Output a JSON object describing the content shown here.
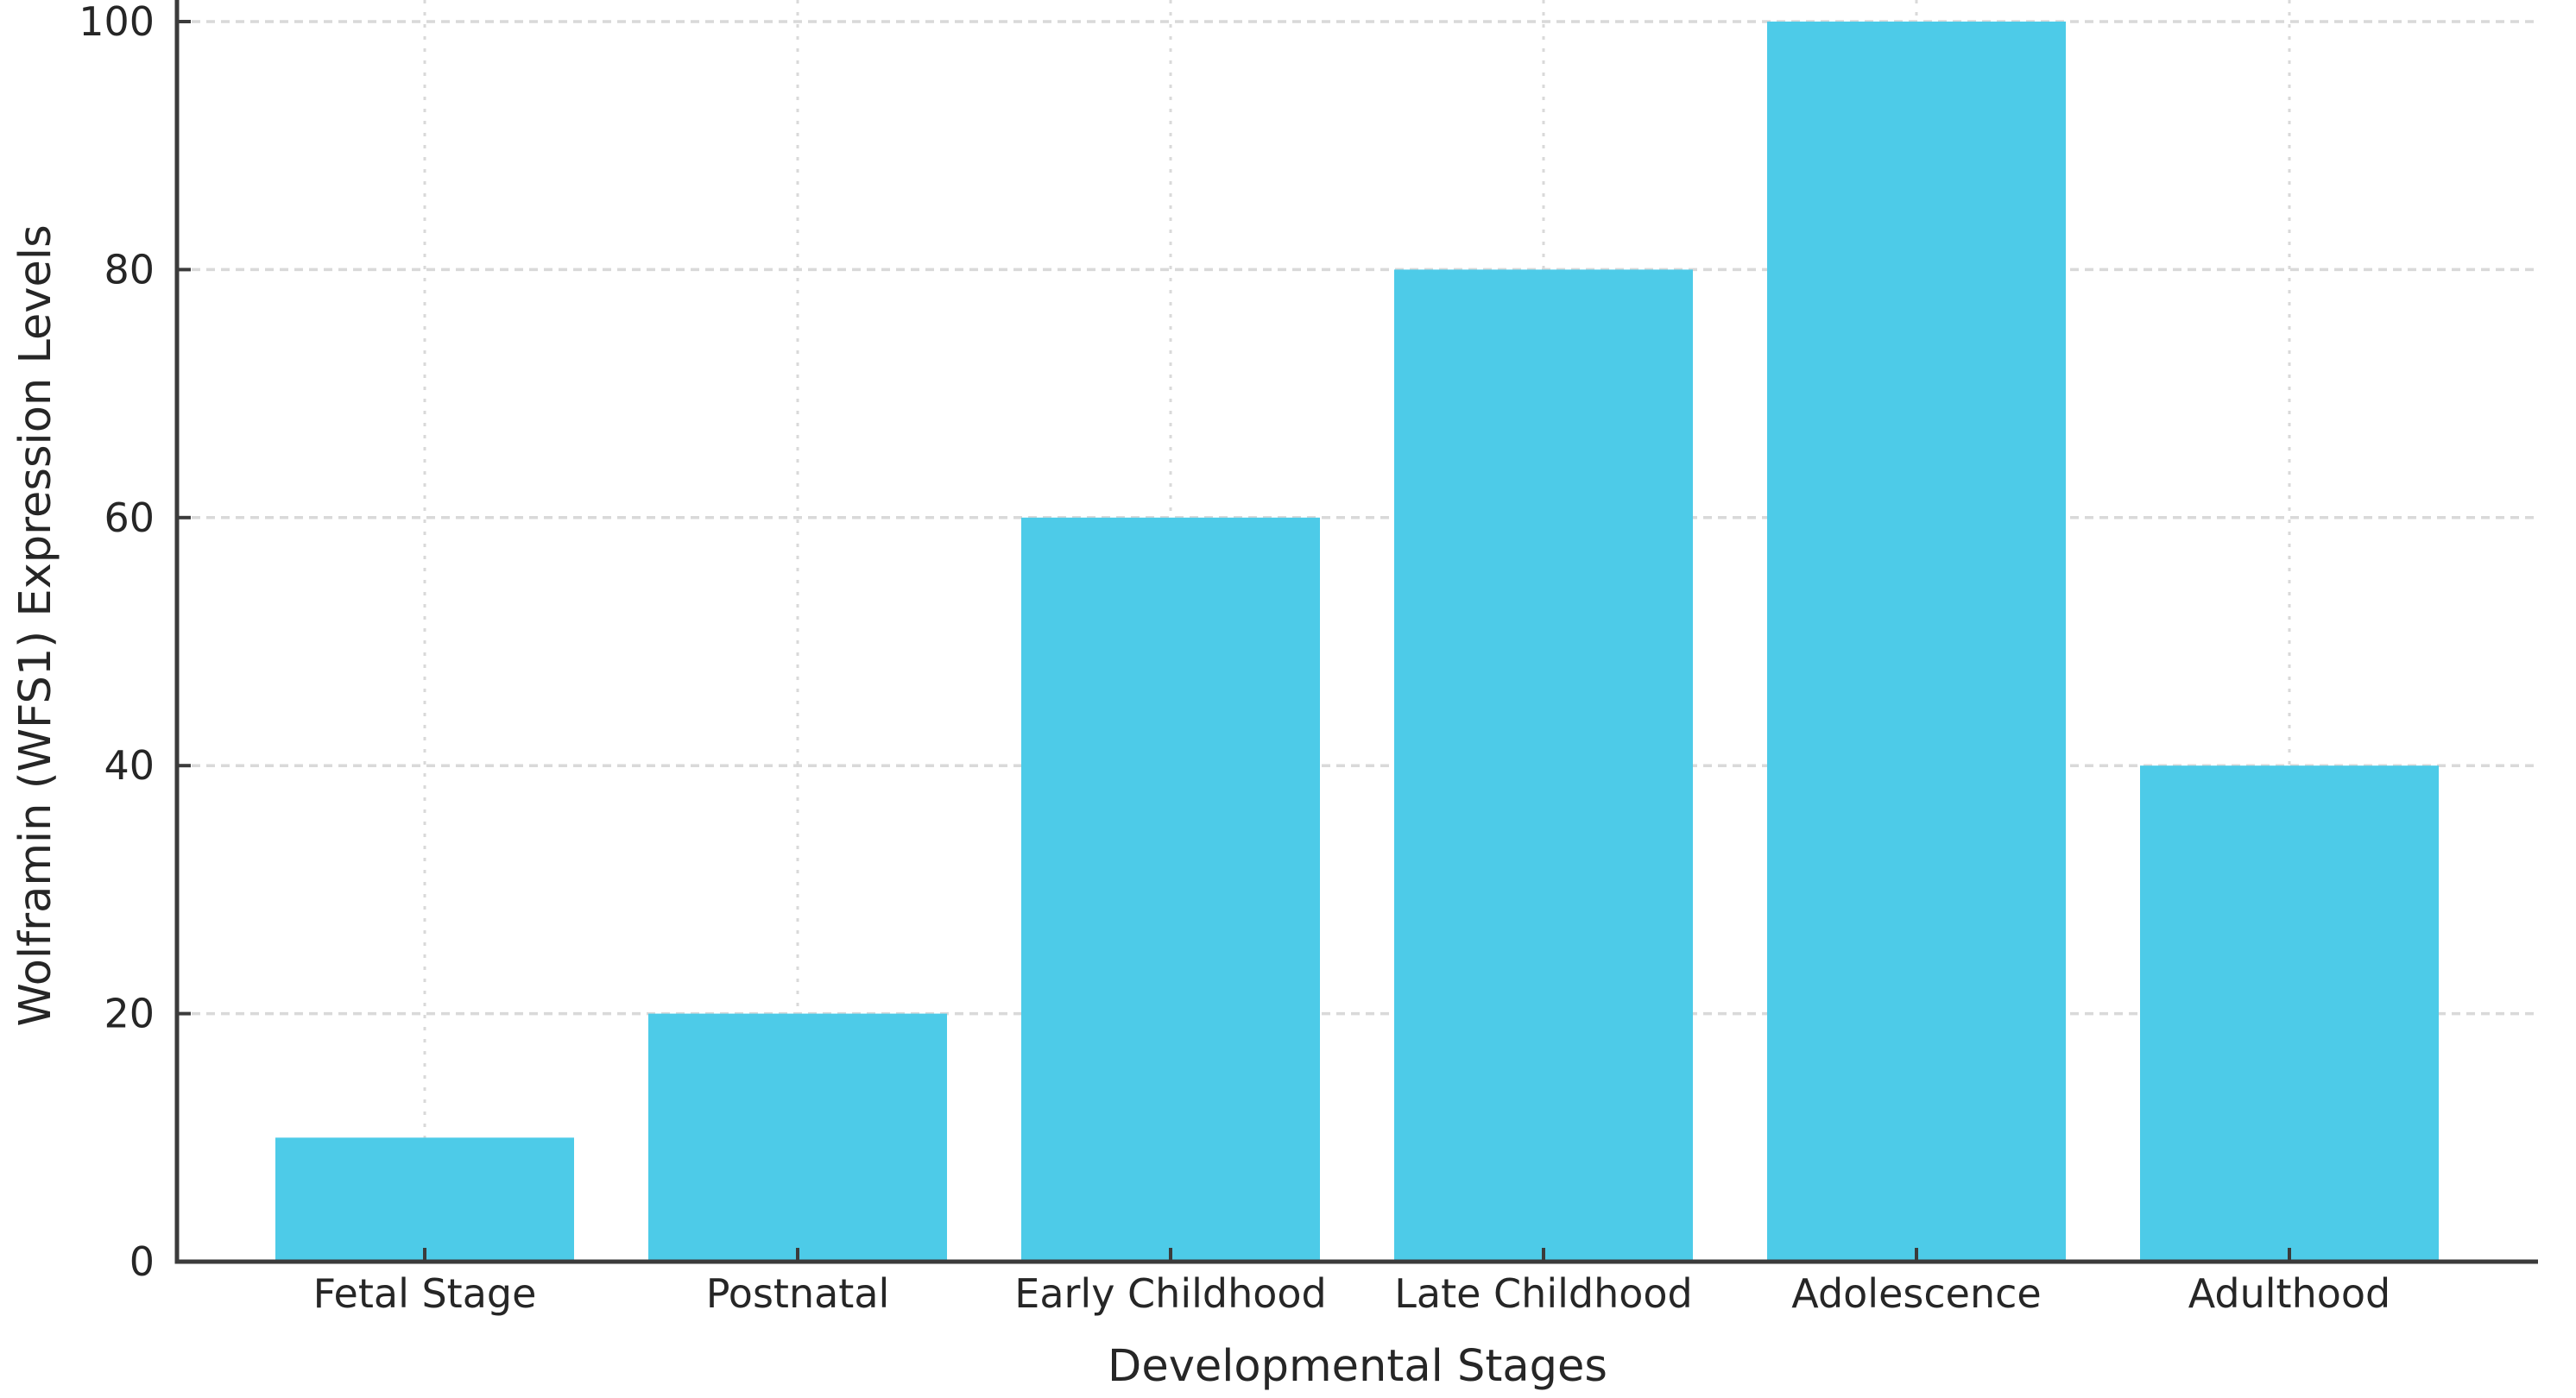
{
  "chart_data": {
    "type": "bar",
    "title": "",
    "categories": [
      "Fetal Stage",
      "Postnatal",
      "Early Childhood",
      "Late Childhood",
      "Adolescence",
      "Adulthood"
    ],
    "values": [
      10,
      20,
      60,
      80,
      100,
      40
    ],
    "xlabel": "Developmental Stages",
    "ylabel": "Wolframin (WFS1) Expression Levels",
    "ylim": [
      0,
      100
    ],
    "yticks": [
      0,
      20,
      40,
      60,
      80,
      100
    ],
    "legend": "none",
    "grid": {
      "horizontal": true,
      "vertical": true,
      "style": "dashed"
    },
    "colors": {
      "bar_fill": "#4DCBE8",
      "axis": "#3B3B3B",
      "grid": "#D9D9D9",
      "tick_text": "#262626"
    }
  }
}
